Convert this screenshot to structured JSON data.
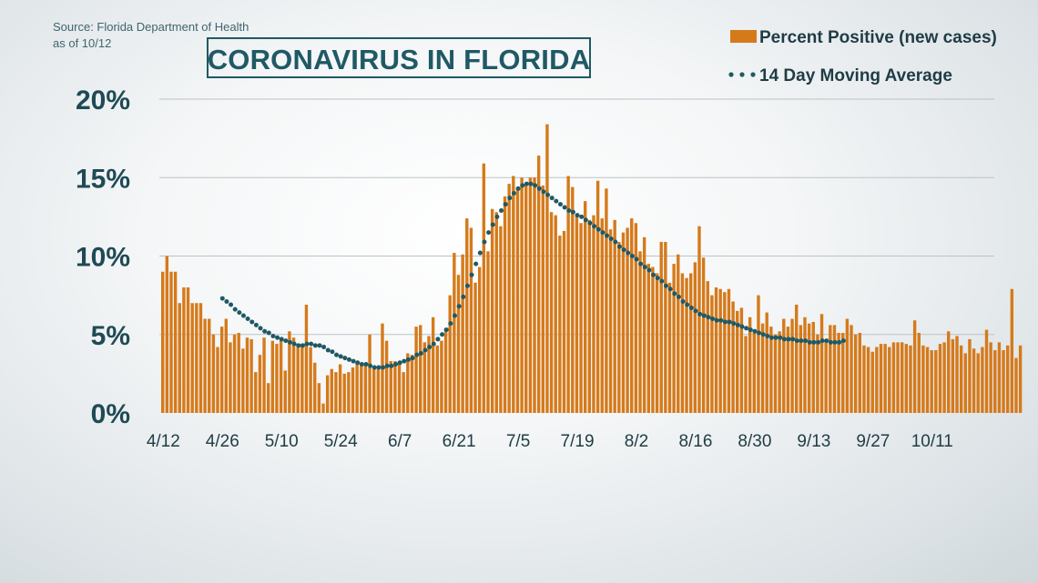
{
  "source_line1": "Source: Florida Department of Health",
  "source_line2": "as of 10/12",
  "title": "CORONAVIRUS IN FLORIDA",
  "colors": {
    "bar": "#d57a1b",
    "avg": "#1f5965"
  },
  "chart_data": {
    "type": "bar",
    "title": "CORONAVIRUS IN FLORIDA",
    "legend_placement": "top-right",
    "grid": true,
    "ylim": [
      0,
      20
    ],
    "y_ticks": [
      "0%",
      "5%",
      "10%",
      "15%",
      "20%"
    ],
    "x_ticks": [
      "4/12",
      "4/26",
      "5/10",
      "5/24",
      "6/7",
      "6/21",
      "7/5",
      "7/19",
      "8/2",
      "8/16",
      "8/30",
      "9/13",
      "9/27",
      "10/11"
    ],
    "start_date": "4/12",
    "series": [
      {
        "name": "Percent Positive (new cases)",
        "type": "bar",
        "values": [
          9.0,
          10.0,
          9.0,
          9.0,
          7.0,
          8.0,
          8.0,
          7.0,
          7.0,
          7.0,
          6.0,
          6.0,
          5.0,
          4.2,
          5.5,
          6.0,
          4.5,
          5.0,
          5.1,
          4.1,
          4.8,
          4.7,
          2.6,
          3.7,
          4.8,
          1.9,
          4.6,
          4.4,
          4.7,
          2.7,
          5.2,
          4.8,
          4.4,
          4.4,
          6.9,
          4.2,
          3.2,
          1.9,
          0.6,
          2.4,
          2.8,
          2.6,
          3.1,
          2.5,
          2.6,
          2.9,
          3.2,
          3.1,
          3.1,
          5.0,
          2.9,
          2.8,
          5.7,
          4.6,
          3.3,
          3.3,
          3.3,
          2.6,
          3.8,
          3.7,
          5.5,
          5.6,
          4.5,
          4.9,
          6.1,
          4.3,
          4.6,
          5.4,
          7.5,
          10.2,
          8.8,
          10.1,
          12.4,
          11.8,
          8.3,
          9.3,
          15.9,
          10.3,
          13.0,
          12.8,
          11.9,
          13.8,
          14.6,
          15.1,
          14.4,
          15.0,
          14.6,
          15.0,
          15.0,
          16.4,
          14.5,
          18.4,
          12.8,
          12.6,
          11.3,
          11.6,
          15.1,
          14.4,
          12.6,
          12.1,
          13.5,
          12.3,
          12.6,
          14.8,
          12.4,
          14.3,
          11.7,
          12.3,
          10.9,
          11.5,
          11.8,
          12.4,
          12.1,
          10.3,
          11.2,
          9.5,
          9.3,
          8.9,
          10.9,
          10.9,
          8.3,
          9.5,
          10.1,
          8.9,
          8.6,
          8.9,
          9.6,
          11.9,
          9.9,
          8.4,
          7.5,
          8.0,
          7.9,
          7.7,
          7.9,
          7.1,
          6.5,
          6.7,
          4.9,
          6.1,
          5.1,
          7.5,
          5.7,
          6.4,
          5.5,
          5.0,
          5.2,
          6.0,
          5.5,
          6.0,
          6.9,
          5.6,
          6.1,
          5.7,
          5.8,
          5.0,
          6.3,
          4.6,
          5.6,
          5.6,
          5.1,
          5.1,
          6.0,
          5.6,
          5.0,
          5.1,
          4.3,
          4.2,
          3.9,
          4.2,
          4.4,
          4.4,
          4.2,
          4.5,
          4.5,
          4.5,
          4.4,
          4.3,
          5.9,
          5.1,
          4.3,
          4.2,
          4.0,
          4.0,
          4.4,
          4.5,
          5.2,
          4.7,
          4.9,
          4.3,
          3.8,
          4.7,
          4.1,
          3.8,
          4.2,
          5.3,
          4.5,
          4.0,
          4.5,
          4.0,
          4.3,
          7.9,
          3.5,
          4.3
        ]
      },
      {
        "name": "14 Day Moving Average",
        "type": "line",
        "style": "dotted",
        "start_index": 14,
        "values": [
          7.3,
          7.1,
          6.9,
          6.6,
          6.4,
          6.2,
          6.0,
          5.8,
          5.6,
          5.4,
          5.2,
          5.1,
          4.9,
          4.8,
          4.7,
          4.6,
          4.5,
          4.4,
          4.3,
          4.3,
          4.4,
          4.4,
          4.3,
          4.3,
          4.2,
          4.0,
          3.9,
          3.7,
          3.6,
          3.5,
          3.4,
          3.3,
          3.2,
          3.1,
          3.1,
          3.0,
          2.9,
          2.9,
          2.9,
          3.0,
          3.0,
          3.1,
          3.2,
          3.3,
          3.4,
          3.5,
          3.7,
          3.8,
          4.0,
          4.2,
          4.4,
          4.7,
          5.0,
          5.3,
          5.7,
          6.2,
          6.8,
          7.4,
          8.1,
          8.8,
          9.5,
          10.2,
          10.9,
          11.5,
          12.0,
          12.5,
          12.9,
          13.3,
          13.7,
          14.0,
          14.3,
          14.5,
          14.6,
          14.6,
          14.5,
          14.3,
          14.1,
          13.9,
          13.7,
          13.5,
          13.3,
          13.1,
          12.9,
          12.8,
          12.6,
          12.5,
          12.3,
          12.1,
          11.9,
          11.7,
          11.5,
          11.3,
          11.1,
          10.9,
          10.6,
          10.4,
          10.2,
          10.0,
          9.8,
          9.5,
          9.3,
          9.1,
          8.8,
          8.6,
          8.4,
          8.1,
          7.9,
          7.6,
          7.4,
          7.1,
          6.9,
          6.7,
          6.5,
          6.3,
          6.2,
          6.1,
          6.0,
          5.9,
          5.9,
          5.8,
          5.8,
          5.7,
          5.6,
          5.5,
          5.4,
          5.3,
          5.2,
          5.1,
          5.0,
          4.9,
          4.8,
          4.8,
          4.8,
          4.7,
          4.7,
          4.7,
          4.6,
          4.6,
          4.6,
          4.5,
          4.5,
          4.5,
          4.6,
          4.6,
          4.5,
          4.5,
          4.5,
          4.6
        ]
      }
    ]
  }
}
